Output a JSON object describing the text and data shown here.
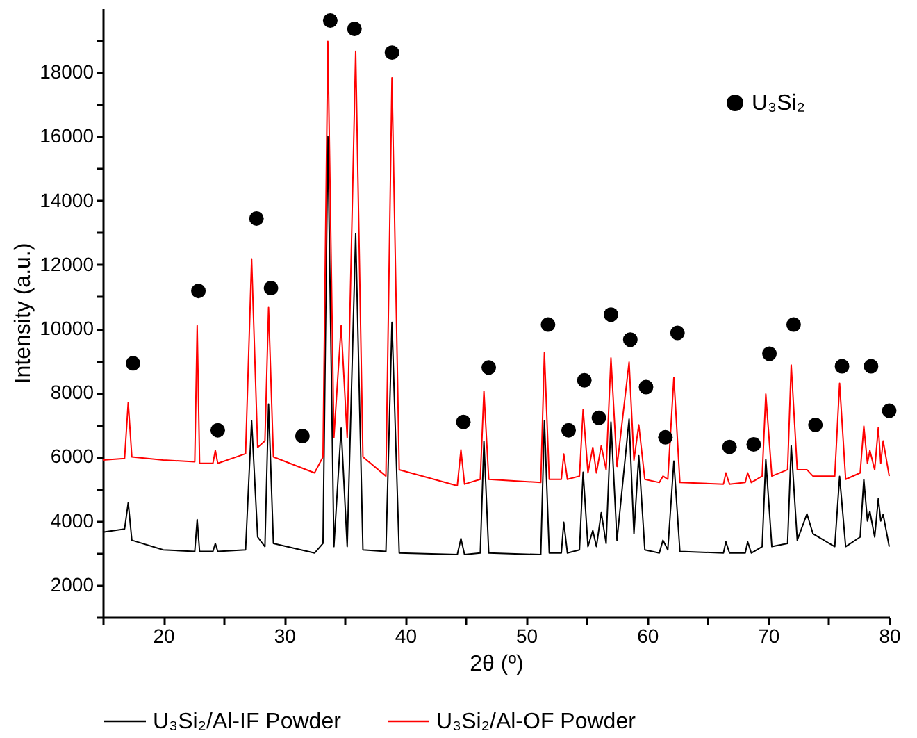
{
  "chart_data": {
    "type": "line",
    "xlabel": "2θ (º)",
    "ylabel": "Intensity (a.u.)",
    "xlim": [
      15,
      80
    ],
    "ylim": [
      1000,
      20000
    ],
    "xticks": [
      {
        "value": 15,
        "label": null
      },
      20,
      {
        "value": 25,
        "label": null
      },
      30,
      {
        "value": 35,
        "label": null
      },
      40,
      {
        "value": 45,
        "label": null
      },
      50,
      {
        "value": 55,
        "label": null
      },
      60,
      {
        "value": 65,
        "label": null
      },
      70,
      {
        "value": 75,
        "label": null
      },
      80
    ],
    "yticks": [
      {
        "value": 1000,
        "label": null
      },
      2000,
      {
        "value": 3000,
        "label": null
      },
      4000,
      {
        "value": 5000,
        "label": null
      },
      6000,
      {
        "value": 7000,
        "label": null
      },
      8000,
      {
        "value": 9000,
        "label": null
      },
      10000,
      {
        "value": 11000,
        "label": null
      },
      12000,
      {
        "value": 13000,
        "label": null
      },
      14000,
      {
        "value": 15000,
        "label": null
      },
      16000,
      {
        "value": 17000,
        "label": null
      },
      18000,
      {
        "value": 19000,
        "label": null
      }
    ],
    "grid": false,
    "legend": "bottom",
    "marker": "none",
    "line_style": "solid",
    "x": [
      15.0,
      16.8,
      17.1,
      17.4,
      20.0,
      22.6,
      22.8,
      23.0,
      24.1,
      24.3,
      24.5,
      26.8,
      27.3,
      27.8,
      28.4,
      28.7,
      29.1,
      32.5,
      33.2,
      33.6,
      34.1,
      34.7,
      35.2,
      35.9,
      36.5,
      38.4,
      38.9,
      39.5,
      44.3,
      44.6,
      44.9,
      46.2,
      46.5,
      46.9,
      51.2,
      51.5,
      51.9,
      52.9,
      53.1,
      53.4,
      54.4,
      54.7,
      55.1,
      55.5,
      55.8,
      56.2,
      56.6,
      57.0,
      57.5,
      58.5,
      58.9,
      59.3,
      59.8,
      61.0,
      61.3,
      61.7,
      62.2,
      62.7,
      66.3,
      66.5,
      66.8,
      68.1,
      68.3,
      68.6,
      69.5,
      69.8,
      70.3,
      71.6,
      71.9,
      72.4,
      73.2,
      73.7,
      75.5,
      75.9,
      76.4,
      77.6,
      77.9,
      78.2,
      78.4,
      78.8,
      79.1,
      79.3,
      79.5,
      80.0
    ],
    "series": [
      {
        "name": "U₃Si₂/Al-IF Powder",
        "type": "line",
        "color": "#000000",
        "values": [
          3650,
          3750,
          4570,
          3400,
          3100,
          3050,
          4040,
          3050,
          3050,
          3300,
          3050,
          3100,
          7130,
          3500,
          3200,
          7650,
          3300,
          3000,
          3300,
          16000,
          3200,
          6900,
          3200,
          12960,
          3100,
          3050,
          10200,
          3000,
          2950,
          3450,
          2950,
          3000,
          6480,
          3000,
          2950,
          7130,
          3000,
          3000,
          3960,
          3000,
          3100,
          5520,
          3200,
          3700,
          3200,
          4260,
          3300,
          7090,
          3400,
          7180,
          3600,
          6040,
          3100,
          3000,
          3400,
          3100,
          5870,
          3050,
          3000,
          3350,
          3000,
          3000,
          3350,
          3000,
          3200,
          5920,
          3200,
          3300,
          6350,
          3400,
          4220,
          3600,
          3200,
          5390,
          3200,
          3500,
          5300,
          4000,
          4300,
          3500,
          4700,
          4000,
          4200,
          3200
        ]
      },
      {
        "name": "U₃Si₂/Al-OF Powder",
        "type": "line",
        "color": "#ff0000",
        "values": [
          5900,
          5950,
          7700,
          6000,
          5900,
          5850,
          10100,
          5800,
          5800,
          6200,
          5800,
          6100,
          12180,
          6300,
          6500,
          10660,
          6000,
          5500,
          6000,
          18970,
          6600,
          10100,
          6600,
          18660,
          6000,
          5400,
          17830,
          5600,
          5100,
          6220,
          5150,
          5300,
          8050,
          5300,
          5200,
          9260,
          5300,
          5300,
          6090,
          5300,
          5400,
          7480,
          5500,
          6300,
          5500,
          6350,
          5600,
          9090,
          5700,
          8960,
          5900,
          7000,
          5300,
          5200,
          5400,
          5300,
          8480,
          5200,
          5150,
          5500,
          5150,
          5200,
          5500,
          5200,
          5400,
          7960,
          5400,
          5600,
          8870,
          5600,
          5600,
          5400,
          5400,
          8300,
          5300,
          5500,
          6960,
          5800,
          6200,
          5600,
          6920,
          5800,
          6500,
          5400
        ]
      },
      {
        "name": "U₃Si₂",
        "type": "scatter",
        "marker": "circle",
        "color": "#000000",
        "x": [
          17.5,
          22.9,
          24.5,
          27.7,
          28.9,
          31.5,
          33.8,
          35.8,
          38.9,
          44.8,
          46.9,
          51.8,
          53.5,
          54.8,
          56.0,
          57.0,
          58.6,
          59.9,
          61.5,
          62.5,
          66.8,
          68.8,
          70.1,
          72.1,
          73.9,
          76.1,
          78.5,
          80.0
        ],
        "values": [
          8920,
          11180,
          6830,
          13440,
          11270,
          6650,
          19620,
          19360,
          18620,
          7090,
          8790,
          10130,
          6830,
          8390,
          7220,
          10440,
          9660,
          8180,
          6610,
          9870,
          6310,
          6390,
          9220,
          10130,
          7000,
          8830,
          8830,
          7440
        ]
      }
    ]
  }
}
